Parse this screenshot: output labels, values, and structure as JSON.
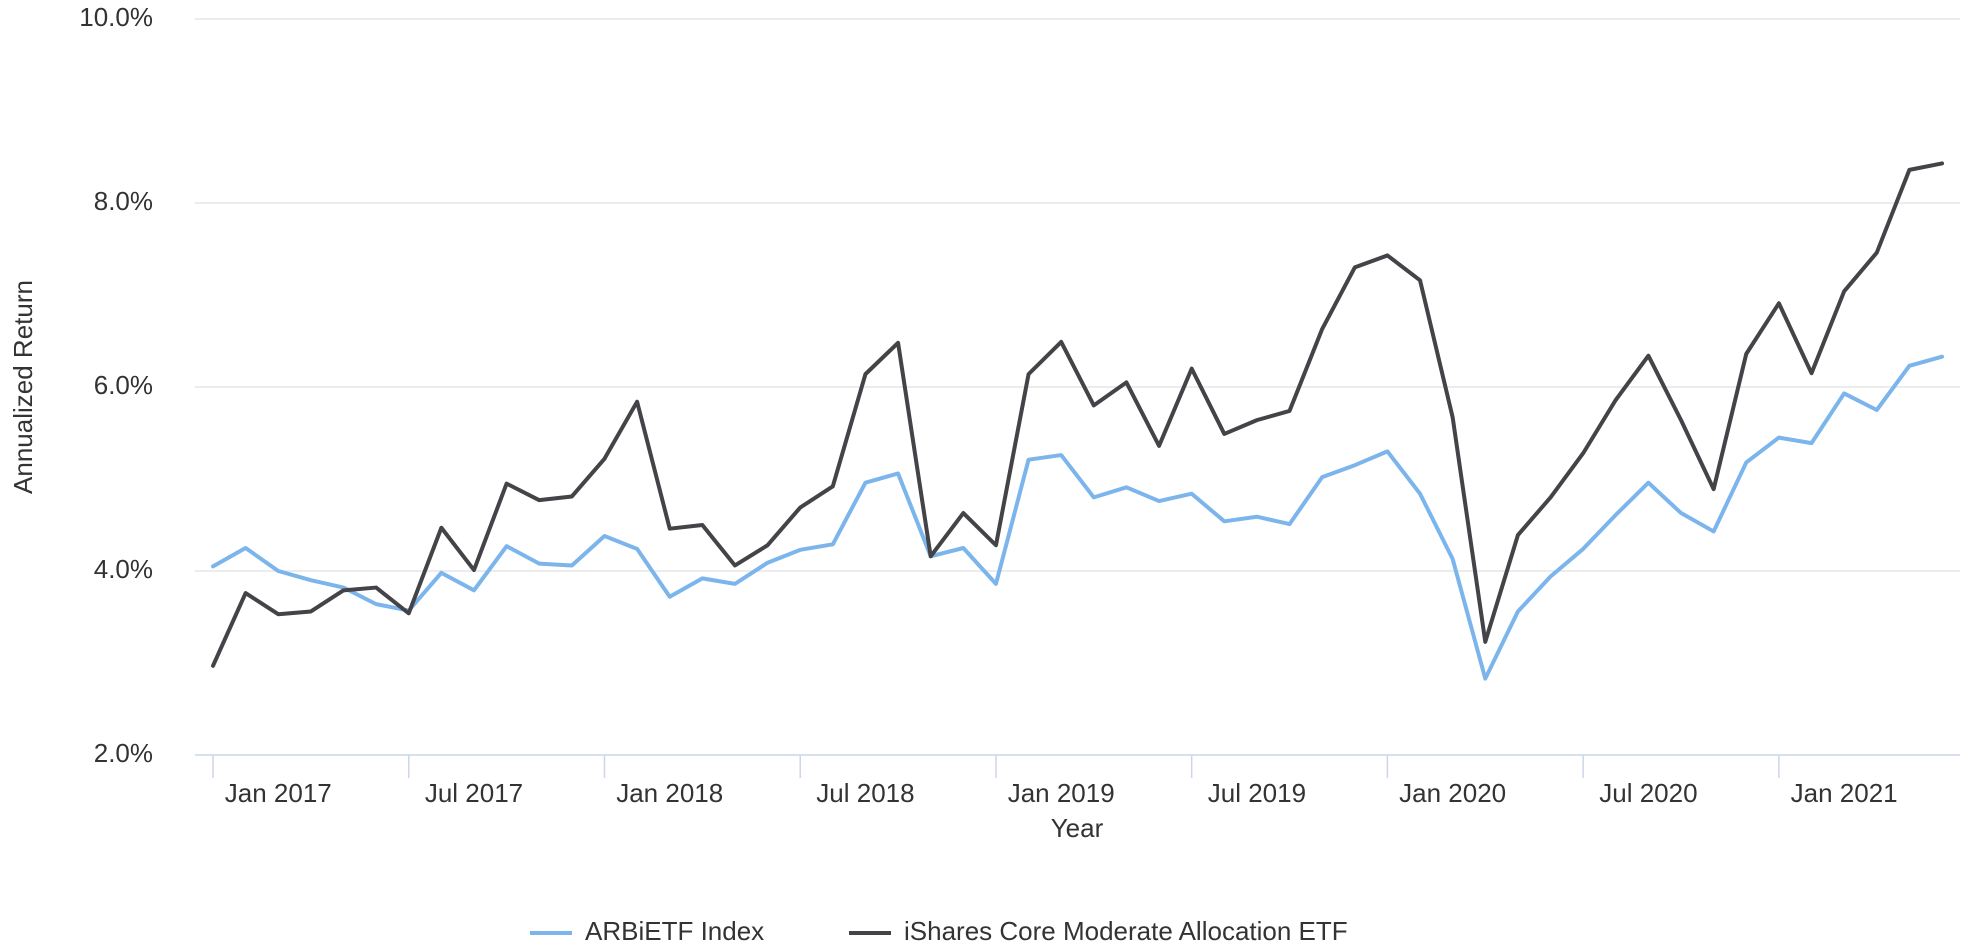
{
  "chart_data": {
    "type": "line",
    "y_label": "Annualized Return",
    "x_label": "Year",
    "categories": [
      null,
      null,
      "Jan 2017",
      null,
      null,
      null,
      null,
      null,
      "Jul 2017",
      null,
      null,
      null,
      null,
      null,
      "Jan 2018",
      null,
      null,
      null,
      null,
      null,
      "Jul 2018",
      null,
      null,
      null,
      null,
      null,
      "Jan 2019",
      null,
      null,
      null,
      null,
      null,
      "Jul 2019",
      null,
      null,
      null,
      null,
      null,
      "Jan 2020",
      null,
      null,
      null,
      null,
      null,
      "Jul 2020",
      null,
      null,
      null,
      null,
      null,
      "Jan 2021",
      null,
      null,
      null
    ],
    "series": [
      {
        "name": "ARBiETF Index",
        "color": "#7cb5ec",
        "values": [
          4.05,
          4.25,
          4.0,
          3.9,
          3.82,
          3.64,
          3.57,
          3.98,
          3.79,
          4.27,
          4.08,
          4.06,
          4.38,
          4.24,
          3.72,
          3.92,
          3.86,
          4.09,
          4.23,
          4.29,
          4.96,
          5.06,
          4.16,
          4.25,
          3.86,
          5.21,
          5.26,
          4.8,
          4.91,
          4.76,
          4.84,
          4.54,
          4.59,
          4.51,
          5.02,
          5.15,
          5.3,
          4.84,
          4.13,
          2.83,
          3.56,
          3.94,
          4.24,
          4.61,
          4.96,
          4.63,
          4.43,
          5.18,
          5.45,
          5.39,
          5.93,
          5.75,
          6.23,
          6.33
        ]
      },
      {
        "name": "iShares Core Moderate Allocation ETF",
        "color": "#434348",
        "values": [
          2.97,
          3.76,
          3.53,
          3.56,
          3.79,
          3.82,
          3.54,
          4.47,
          4.01,
          4.95,
          4.77,
          4.81,
          5.22,
          5.84,
          4.46,
          4.5,
          4.06,
          4.28,
          4.69,
          4.92,
          6.14,
          6.48,
          4.16,
          4.63,
          4.28,
          6.14,
          6.49,
          5.8,
          6.05,
          5.36,
          6.2,
          5.49,
          5.64,
          5.74,
          6.63,
          7.3,
          7.43,
          7.16,
          5.67,
          3.23,
          4.39,
          4.8,
          5.28,
          5.86,
          6.34,
          5.64,
          4.89,
          6.36,
          6.91,
          6.15,
          7.04,
          7.46,
          8.36,
          8.43
        ]
      }
    ],
    "ylim": [
      2,
      10
    ],
    "yticks": [
      {
        "value": 2,
        "label": "2.0%"
      },
      {
        "value": 4,
        "label": "4.0%"
      },
      {
        "value": 6,
        "label": "6.0%"
      },
      {
        "value": 8,
        "label": "8.0%"
      },
      {
        "value": 10,
        "label": "10.0%"
      }
    ],
    "grid": true,
    "legend": "bottom"
  }
}
